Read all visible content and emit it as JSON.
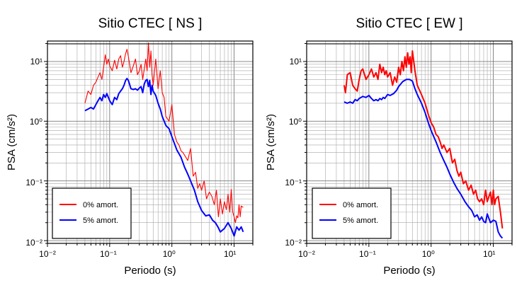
{
  "chart_data": [
    {
      "type": "line",
      "title": "Sitio CTEC [ NS ]",
      "xlabel": "Periodo (s)",
      "ylabel": "PSA (cm/s²)",
      "xscale": "log",
      "yscale": "log",
      "xlim": [
        0.01,
        20
      ],
      "ylim": [
        0.009,
        22
      ],
      "grid": true,
      "legend_position": "bottom-left",
      "x_ticks": [
        "10⁻²",
        "10⁻¹",
        "10⁰",
        "10¹"
      ],
      "y_ticks": [
        "10⁻²",
        "10⁻¹",
        "10⁰",
        "10¹"
      ],
      "series": [
        {
          "name": "0% amort.",
          "color": "#ff0000",
          "x": [
            0.04,
            0.045,
            0.05,
            0.055,
            0.06,
            0.065,
            0.07,
            0.075,
            0.08,
            0.085,
            0.09,
            0.095,
            0.1,
            0.11,
            0.12,
            0.13,
            0.14,
            0.15,
            0.16,
            0.17,
            0.18,
            0.19,
            0.2,
            0.22,
            0.24,
            0.26,
            0.28,
            0.3,
            0.32,
            0.34,
            0.36,
            0.38,
            0.4,
            0.42,
            0.44,
            0.46,
            0.48,
            0.5,
            0.55,
            0.6,
            0.65,
            0.7,
            0.75,
            0.8,
            0.9,
            1.0,
            1.1,
            1.2,
            1.3,
            1.4,
            1.5,
            1.6,
            1.8,
            2.0,
            2.2,
            2.4,
            2.6,
            2.8,
            3.0,
            3.3,
            3.6,
            4.0,
            4.4,
            4.8,
            5.2,
            5.6,
            6.0,
            6.5,
            7.0,
            7.5,
            8.0,
            8.5,
            9.0,
            9.5,
            10.0,
            10.5,
            11.0,
            11.5,
            12.0,
            12.5,
            13.0,
            14.0
          ],
          "values": [
            2.0,
            3.2,
            2.8,
            4.0,
            4.5,
            5.5,
            6.5,
            5.0,
            8.0,
            13.0,
            9.0,
            11.0,
            8.5,
            7.0,
            10.5,
            7.5,
            11.0,
            12.5,
            8.0,
            10.0,
            13.5,
            16.0,
            12.0,
            6.5,
            8.5,
            11.0,
            6.0,
            7.0,
            9.0,
            5.0,
            7.5,
            11.0,
            7.0,
            20.5,
            8.0,
            15.0,
            6.0,
            4.0,
            11.0,
            3.5,
            7.0,
            3.0,
            2.5,
            1.2,
            1.0,
            1.9,
            0.6,
            0.45,
            0.4,
            0.32,
            0.3,
            0.27,
            0.22,
            0.35,
            0.12,
            0.14,
            0.075,
            0.09,
            0.07,
            0.1,
            0.05,
            0.065,
            0.055,
            0.04,
            0.07,
            0.025,
            0.05,
            0.028,
            0.045,
            0.033,
            0.06,
            0.03,
            0.072,
            0.03,
            0.025,
            0.02,
            0.026,
            0.024,
            0.04,
            0.025,
            0.038,
            0.036
          ]
        },
        {
          "name": "5% amort.",
          "color": "#0000ff",
          "x": [
            0.04,
            0.045,
            0.05,
            0.055,
            0.06,
            0.065,
            0.07,
            0.075,
            0.08,
            0.085,
            0.09,
            0.1,
            0.11,
            0.12,
            0.13,
            0.14,
            0.15,
            0.16,
            0.17,
            0.18,
            0.19,
            0.2,
            0.22,
            0.24,
            0.26,
            0.28,
            0.3,
            0.32,
            0.34,
            0.36,
            0.38,
            0.4,
            0.42,
            0.44,
            0.46,
            0.48,
            0.5,
            0.55,
            0.6,
            0.65,
            0.7,
            0.8,
            0.9,
            1.0,
            1.2,
            1.4,
            1.6,
            1.8,
            2.0,
            2.3,
            2.6,
            3.0,
            3.5,
            4.0,
            4.5,
            5.0,
            5.5,
            6.0,
            7.0,
            8.0,
            9.0,
            10.0,
            11.0,
            12.0,
            13.0,
            14.0
          ],
          "values": [
            1.5,
            1.6,
            1.7,
            1.6,
            1.9,
            2.2,
            2.5,
            2.2,
            2.8,
            2.5,
            2.9,
            2.2,
            1.9,
            2.5,
            2.3,
            2.9,
            3.2,
            3.5,
            4.0,
            4.8,
            5.2,
            4.8,
            3.5,
            3.4,
            3.5,
            3.3,
            3.6,
            3.8,
            3.0,
            4.2,
            4.8,
            5.0,
            3.8,
            4.8,
            2.8,
            4.0,
            3.2,
            2.7,
            2.0,
            1.6,
            1.2,
            0.85,
            0.75,
            0.55,
            0.33,
            0.25,
            0.17,
            0.13,
            0.1,
            0.07,
            0.045,
            0.032,
            0.026,
            0.027,
            0.022,
            0.02,
            0.017,
            0.014,
            0.016,
            0.02,
            0.016,
            0.012,
            0.017,
            0.015,
            0.017,
            0.014
          ]
        }
      ]
    },
    {
      "type": "line",
      "title": "Sitio CTEC [ EW ]",
      "xlabel": "Periodo (s)",
      "ylabel": "PSA (cm/s²)",
      "xscale": "log",
      "yscale": "log",
      "xlim": [
        0.01,
        20
      ],
      "ylim": [
        0.009,
        22
      ],
      "grid": true,
      "legend_position": "bottom-left",
      "x_ticks": [
        "10⁻²",
        "10⁻¹",
        "10⁰",
        "10¹"
      ],
      "y_ticks": [
        "10⁻²",
        "10⁻¹",
        "10⁰",
        "10¹"
      ],
      "series": [
        {
          "name": "0% amort.",
          "color": "#ff0000",
          "x": [
            0.04,
            0.042,
            0.045,
            0.05,
            0.055,
            0.06,
            0.065,
            0.07,
            0.075,
            0.08,
            0.09,
            0.1,
            0.11,
            0.12,
            0.13,
            0.14,
            0.15,
            0.16,
            0.17,
            0.18,
            0.19,
            0.2,
            0.22,
            0.24,
            0.26,
            0.28,
            0.3,
            0.32,
            0.34,
            0.36,
            0.38,
            0.4,
            0.42,
            0.44,
            0.46,
            0.48,
            0.5,
            0.55,
            0.6,
            0.7,
            0.8,
            0.9,
            1.0,
            1.1,
            1.2,
            1.3,
            1.4,
            1.5,
            1.6,
            1.8,
            2.0,
            2.2,
            2.4,
            2.6,
            2.8,
            3.0,
            3.3,
            3.6,
            4.0,
            4.4,
            4.8,
            5.2,
            5.6,
            6.0,
            6.5,
            7.0,
            7.5,
            8.0,
            8.5,
            9.0,
            9.5,
            10.0,
            10.5,
            11.0,
            12.0,
            13.0,
            14.0
          ],
          "values": [
            4.0,
            3.0,
            6.0,
            6.5,
            4.0,
            3.5,
            3.2,
            5.0,
            7.0,
            7.5,
            5.0,
            6.0,
            7.5,
            5.5,
            6.5,
            5.0,
            9.0,
            6.5,
            8.0,
            6.0,
            7.0,
            5.5,
            6.5,
            4.0,
            5.5,
            4.5,
            8.0,
            6.0,
            10.0,
            7.0,
            12.0,
            8.0,
            14.0,
            9.0,
            12.0,
            6.5,
            15.0,
            7.0,
            4.0,
            2.8,
            2.0,
            1.3,
            0.95,
            0.8,
            0.6,
            0.55,
            0.45,
            0.35,
            0.4,
            0.3,
            0.35,
            0.2,
            0.23,
            0.15,
            0.12,
            0.14,
            0.09,
            0.1,
            0.07,
            0.085,
            0.06,
            0.07,
            0.05,
            0.045,
            0.05,
            0.04,
            0.07,
            0.045,
            0.055,
            0.065,
            0.04,
            0.07,
            0.04,
            0.05,
            0.055,
            0.03,
            0.016
          ]
        },
        {
          "name": "5% amort.",
          "color": "#0000ff",
          "x": [
            0.04,
            0.045,
            0.05,
            0.055,
            0.06,
            0.065,
            0.07,
            0.08,
            0.09,
            0.1,
            0.11,
            0.12,
            0.13,
            0.14,
            0.15,
            0.16,
            0.17,
            0.18,
            0.2,
            0.22,
            0.25,
            0.28,
            0.3,
            0.35,
            0.4,
            0.45,
            0.5,
            0.55,
            0.6,
            0.7,
            0.8,
            0.9,
            1.0,
            1.2,
            1.4,
            1.6,
            1.8,
            2.0,
            2.3,
            2.6,
            3.0,
            3.5,
            4.0,
            4.5,
            5.0,
            5.5,
            6.0,
            6.5,
            7.0,
            7.5,
            8.0,
            9.0,
            10.0,
            11.0,
            12.0,
            13.0,
            14.0
          ],
          "values": [
            2.1,
            2.0,
            2.1,
            2.0,
            2.3,
            2.2,
            2.4,
            2.6,
            2.5,
            2.7,
            2.4,
            2.2,
            2.3,
            2.2,
            2.4,
            2.3,
            2.5,
            2.4,
            2.8,
            2.7,
            2.9,
            3.3,
            3.8,
            4.6,
            5.0,
            5.0,
            4.7,
            3.5,
            2.8,
            2.0,
            1.4,
            0.95,
            0.7,
            0.45,
            0.3,
            0.22,
            0.17,
            0.13,
            0.095,
            0.075,
            0.06,
            0.045,
            0.037,
            0.032,
            0.025,
            0.027,
            0.022,
            0.025,
            0.021,
            0.02,
            0.028,
            0.02,
            0.022,
            0.021,
            0.014,
            0.012,
            0.011
          ]
        }
      ]
    }
  ]
}
